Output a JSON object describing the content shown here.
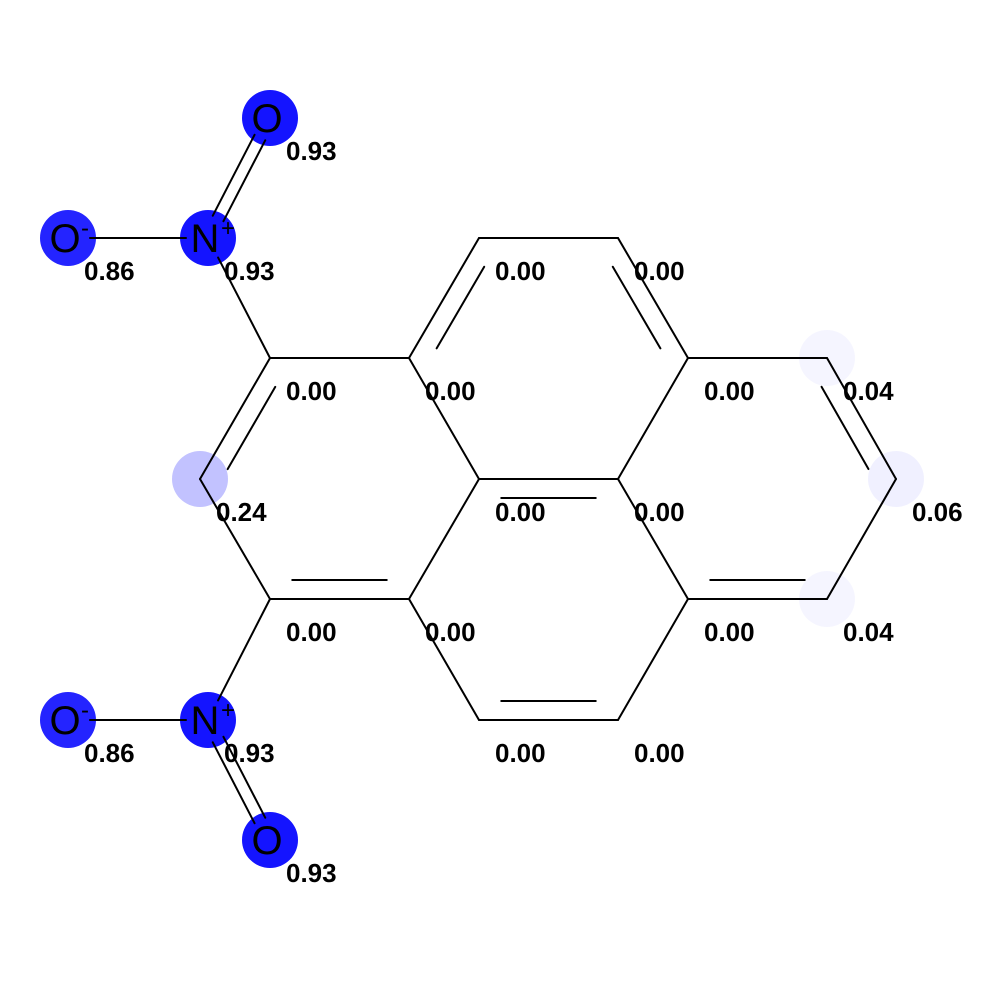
{
  "colors": {
    "highlight": "#0000ff",
    "bond": "#000000",
    "background": "#ffffff"
  },
  "atoms": [
    {
      "id": "o-top",
      "symbol": "O",
      "charge": "",
      "score": "0.93",
      "weight": 0.93
    },
    {
      "id": "n-top",
      "symbol": "N",
      "charge": "+",
      "score": "0.93",
      "weight": 0.93
    },
    {
      "id": "o-top-left",
      "symbol": "O",
      "charge": "-",
      "score": "0.86",
      "weight": 0.86
    },
    {
      "id": "c-a",
      "symbol": "",
      "charge": "",
      "score": "0.00",
      "weight": 0.0
    },
    {
      "id": "c-b",
      "symbol": "",
      "charge": "",
      "score": "0.00",
      "weight": 0.0
    },
    {
      "id": "c-c",
      "symbol": "",
      "charge": "",
      "score": "0.00",
      "weight": 0.0
    },
    {
      "id": "c-d",
      "symbol": "",
      "charge": "",
      "score": "0.00",
      "weight": 0.0
    },
    {
      "id": "c-e",
      "symbol": "",
      "charge": "",
      "score": "0.00",
      "weight": 0.0
    },
    {
      "id": "c-f",
      "symbol": "",
      "charge": "",
      "score": "0.04",
      "weight": 0.04
    },
    {
      "id": "c-g",
      "symbol": "",
      "charge": "",
      "score": "0.06",
      "weight": 0.06
    },
    {
      "id": "c-h",
      "symbol": "",
      "charge": "",
      "score": "0.04",
      "weight": 0.04
    },
    {
      "id": "c-i",
      "symbol": "",
      "charge": "",
      "score": "0.00",
      "weight": 0.0
    },
    {
      "id": "c-j",
      "symbol": "",
      "charge": "",
      "score": "0.00",
      "weight": 0.0
    },
    {
      "id": "c-k",
      "symbol": "",
      "charge": "",
      "score": "0.00",
      "weight": 0.0
    },
    {
      "id": "c-l",
      "symbol": "",
      "charge": "",
      "score": "0.00",
      "weight": 0.0
    },
    {
      "id": "c-m",
      "symbol": "",
      "charge": "",
      "score": "0.00",
      "weight": 0.0
    },
    {
      "id": "c-n",
      "symbol": "",
      "charge": "",
      "score": "0.00",
      "weight": 0.0
    },
    {
      "id": "c-o",
      "symbol": "",
      "charge": "",
      "score": "0.00",
      "weight": 0.0
    },
    {
      "id": "c-p",
      "symbol": "",
      "charge": "",
      "score": "0.24",
      "weight": 0.24
    },
    {
      "id": "n-bottom",
      "symbol": "N",
      "charge": "+",
      "score": "0.93",
      "weight": 0.93
    },
    {
      "id": "o-bottom-left",
      "symbol": "O",
      "charge": "-",
      "score": "0.86",
      "weight": 0.86
    },
    {
      "id": "o-bottom",
      "symbol": "O",
      "charge": "",
      "score": "0.93",
      "weight": 0.93
    }
  ]
}
